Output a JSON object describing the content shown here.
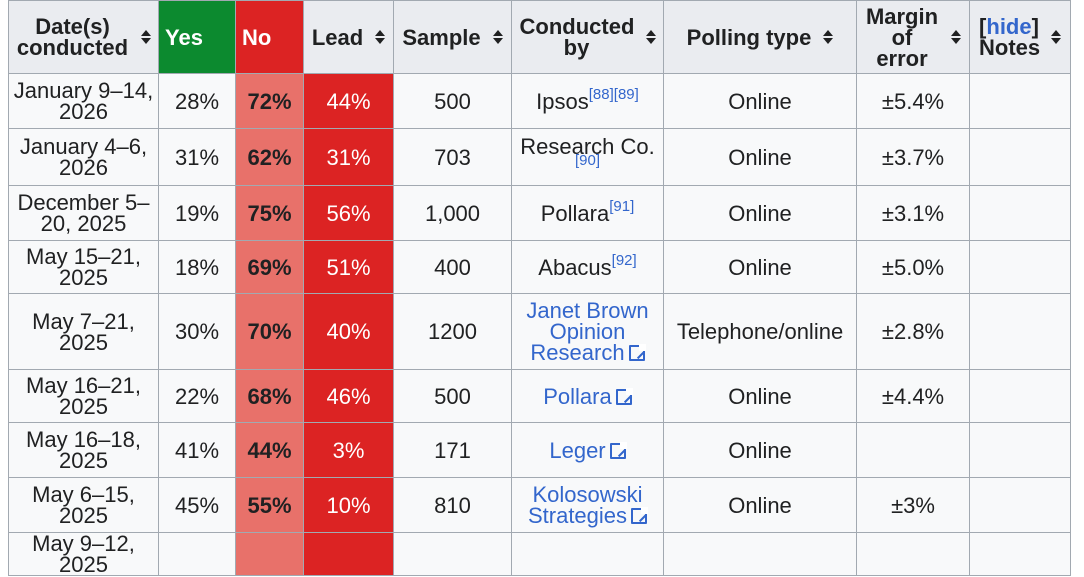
{
  "headers": {
    "date": "Date(s) conducted",
    "yes": "Yes",
    "no": "No",
    "lead": "Lead",
    "sample": "Sample",
    "conducted_by": "Conducted by",
    "polling_type": "Polling type",
    "margin": "Margin of error",
    "hide_open": "[",
    "hide": "hide",
    "hide_close": "]",
    "notes": "Notes"
  },
  "colors": {
    "yes": "#0c8a2f",
    "no": "#dc2323",
    "no_cell": "#e8716a",
    "link": "#3366cc"
  },
  "rows": [
    {
      "date": "January 9–14, 2026",
      "yes": "28%",
      "no": "72%",
      "lead": "44%",
      "sample": "500",
      "by": "Ipsos",
      "refs": "[88][89]",
      "by_link": false,
      "type": "Online",
      "margin": "±5.4%",
      "notes": ""
    },
    {
      "date": "January 4–6, 2026",
      "yes": "31%",
      "no": "62%",
      "lead": "31%",
      "sample": "703",
      "by": "Research Co.",
      "refs": "[90]",
      "by_link": false,
      "type": "Online",
      "margin": "±3.7%",
      "notes": ""
    },
    {
      "date": "December 5–20, 2025",
      "yes": "19%",
      "no": "75%",
      "lead": "56%",
      "sample": "1,000",
      "by": "Pollara",
      "refs": "[91]",
      "by_link": false,
      "type": "Online",
      "margin": "±3.1%",
      "notes": ""
    },
    {
      "date": "May 15–21, 2025",
      "yes": "18%",
      "no": "69%",
      "lead": "51%",
      "sample": "400",
      "by": "Abacus",
      "refs": "[92]",
      "by_link": false,
      "type": "Online",
      "margin": "±5.0%",
      "notes": ""
    },
    {
      "date": "May 7–21, 2025",
      "yes": "30%",
      "no": "70%",
      "lead": "40%",
      "sample": "1200",
      "by": "Janet Brown Opinion Research",
      "refs": "",
      "by_link": true,
      "type": "Telephone/online",
      "margin": "±2.8%",
      "notes": ""
    },
    {
      "date": "May 16–21, 2025",
      "yes": "22%",
      "no": "68%",
      "lead": "46%",
      "sample": "500",
      "by": "Pollara",
      "refs": "",
      "by_link": true,
      "type": "Online",
      "margin": "±4.4%",
      "notes": ""
    },
    {
      "date": "May 16–18, 2025",
      "yes": "41%",
      "no": "44%",
      "lead": "3%",
      "sample": "171",
      "by": "Leger",
      "refs": "",
      "by_link": true,
      "type": "Online",
      "margin": "",
      "notes": ""
    },
    {
      "date": "May 6–15, 2025",
      "yes": "45%",
      "no": "55%",
      "lead": "10%",
      "sample": "810",
      "by": "Kolosowski Strategies",
      "refs": "",
      "by_link": true,
      "type": "Online",
      "margin": "±3%",
      "notes": ""
    },
    {
      "date": "May 9–12, 2025",
      "yes": "",
      "no": "",
      "lead": "",
      "sample": "",
      "by": "",
      "refs": "",
      "by_link": false,
      "type": "",
      "margin": "",
      "notes": ""
    }
  ]
}
